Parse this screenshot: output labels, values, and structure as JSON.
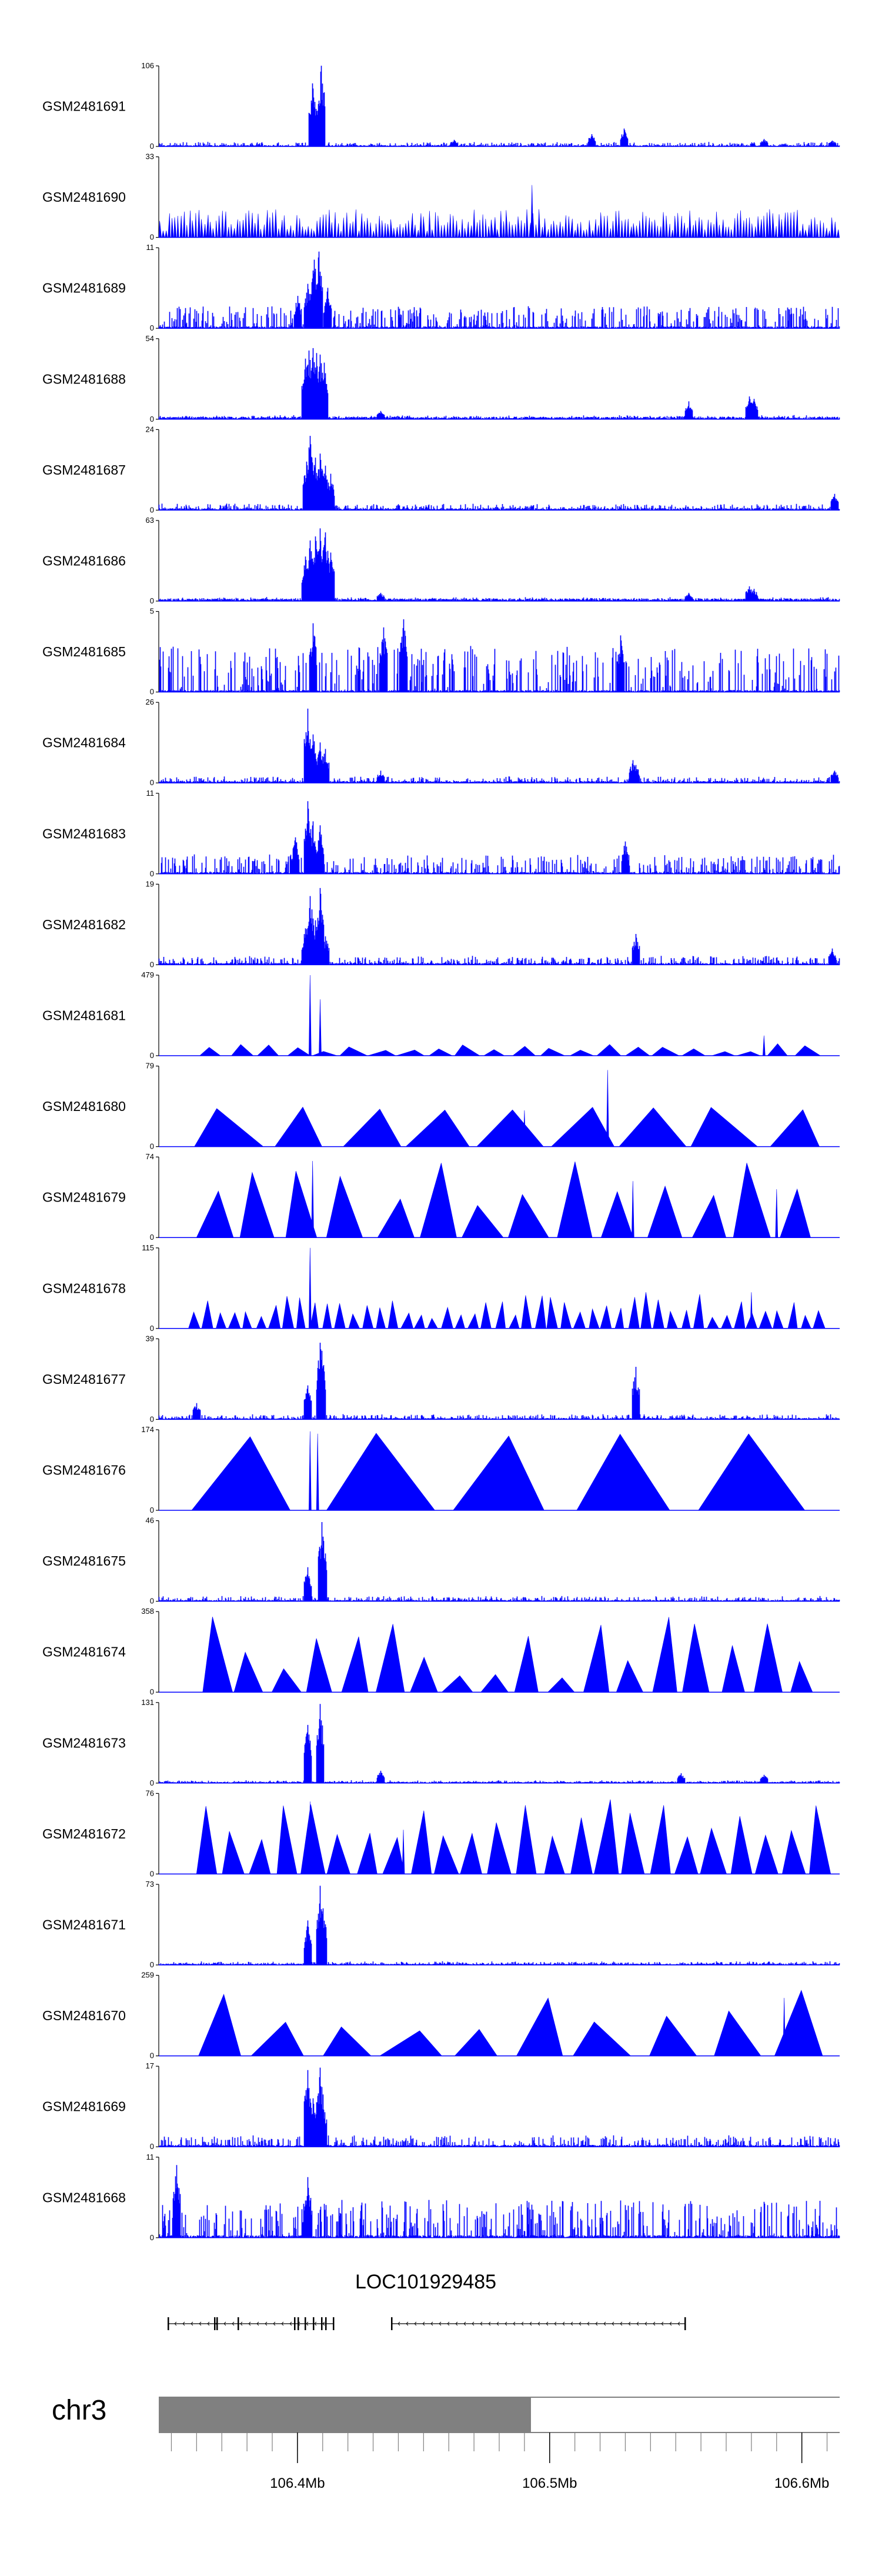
{
  "chart_data": {
    "type": "area",
    "region": {
      "chromosome": "chr3",
      "start_mb": 106.345,
      "end_mb": 106.615
    },
    "gene": {
      "name": "LOC101929485"
    },
    "axis": {
      "ticks": [
        {
          "pos": 106.4,
          "label": "106.4Mb"
        },
        {
          "pos": 106.5,
          "label": "106.5Mb"
        },
        {
          "pos": 106.6,
          "label": "106.6Mb"
        }
      ]
    },
    "colors": {
      "signal": "#0000ff",
      "ideogram_band": "#808080",
      "axis": "#000000"
    },
    "tracks": [
      {
        "name": "GSM2481691",
        "ymax": 106,
        "ymax_label": "106",
        "ymin_label": "0",
        "style": "dense",
        "base": 2,
        "noise": 0.04,
        "peaks": [
          [
            106.4058,
            0.78
          ],
          [
            106.4068,
            0.55
          ],
          [
            106.4093,
            1.0
          ],
          [
            106.5165,
            0.15
          ],
          [
            106.5295,
            0.22
          ],
          [
            106.462,
            0.08
          ],
          [
            106.585,
            0.09
          ],
          [
            106.612,
            0.07
          ]
        ]
      },
      {
        "name": "GSM2481690",
        "ymax": 33,
        "ymax_label": "33",
        "ymin_label": "0",
        "style": "spiky",
        "count": 230,
        "h": [
          0.08,
          0.35
        ],
        "peaks": [
          [
            106.493,
            0.65
          ]
        ]
      },
      {
        "name": "GSM2481689",
        "ymax": 11,
        "ymax_label": "11",
        "ymin_label": "0",
        "style": "dense",
        "base": 3,
        "noise": 0.26,
        "peaks": [
          [
            106.404,
            0.55
          ],
          [
            106.4065,
            0.85
          ],
          [
            106.4085,
            0.95
          ],
          [
            106.412,
            0.5
          ],
          [
            106.4,
            0.4
          ]
        ]
      },
      {
        "name": "GSM2481688",
        "ymax": 54,
        "ymax_label": "54",
        "ymin_label": "0",
        "style": "dense",
        "base": 4,
        "noise": 0.02,
        "peaks": [
          [
            106.403,
            0.75
          ],
          [
            106.4045,
            0.85
          ],
          [
            106.406,
            0.88
          ],
          [
            106.4075,
            0.82
          ],
          [
            106.409,
            0.8
          ],
          [
            106.4105,
            0.7
          ],
          [
            106.433,
            0.1
          ],
          [
            106.555,
            0.22
          ],
          [
            106.579,
            0.28
          ],
          [
            106.581,
            0.25
          ]
        ]
      },
      {
        "name": "GSM2481687",
        "ymax": 24,
        "ymax_label": "24",
        "ymin_label": "0",
        "style": "dense",
        "base": 3,
        "noise": 0.06,
        "peaks": [
          [
            106.4035,
            0.6
          ],
          [
            106.405,
            0.92
          ],
          [
            106.407,
            0.65
          ],
          [
            106.409,
            0.7
          ],
          [
            106.411,
            0.55
          ],
          [
            106.413,
            0.45
          ],
          [
            106.613,
            0.2
          ]
        ]
      },
      {
        "name": "GSM2481686",
        "ymax": 63,
        "ymax_label": "63",
        "ymin_label": "0",
        "style": "dense",
        "base": 4,
        "noise": 0.02,
        "peaks": [
          [
            106.403,
            0.55
          ],
          [
            106.405,
            0.75
          ],
          [
            106.407,
            0.8
          ],
          [
            106.409,
            0.9
          ],
          [
            106.411,
            0.85
          ],
          [
            106.413,
            0.6
          ],
          [
            106.433,
            0.1
          ],
          [
            106.555,
            0.1
          ],
          [
            106.579,
            0.18
          ],
          [
            106.581,
            0.15
          ]
        ]
      },
      {
        "name": "GSM2481685",
        "ymax": 5,
        "ymax_label": "5",
        "ymin_label": "0",
        "style": "dense",
        "base": 3,
        "noise": 0.55,
        "peaks": [
          [
            106.406,
            0.85
          ],
          [
            106.434,
            0.8
          ],
          [
            106.442,
            0.9
          ],
          [
            106.528,
            0.7
          ]
        ]
      },
      {
        "name": "GSM2481684",
        "ymax": 26,
        "ymax_label": "26",
        "ymin_label": "0",
        "style": "dense",
        "base": 3,
        "noise": 0.06,
        "peaks": [
          [
            106.404,
            0.92
          ],
          [
            106.406,
            0.6
          ],
          [
            106.409,
            0.5
          ],
          [
            106.411,
            0.42
          ],
          [
            106.433,
            0.15
          ],
          [
            106.533,
            0.28
          ],
          [
            106.534,
            0.22
          ],
          [
            106.613,
            0.15
          ]
        ]
      },
      {
        "name": "GSM2481683",
        "ymax": 11,
        "ymax_label": "11",
        "ymin_label": "0",
        "style": "dense",
        "base": 3,
        "noise": 0.22,
        "peaks": [
          [
            106.404,
            0.9
          ],
          [
            106.406,
            0.65
          ],
          [
            106.409,
            0.6
          ],
          [
            106.399,
            0.45
          ],
          [
            106.53,
            0.4
          ]
        ]
      },
      {
        "name": "GSM2481682",
        "ymax": 19,
        "ymax_label": "19",
        "ymin_label": "0",
        "style": "dense",
        "base": 3,
        "noise": 0.09,
        "peaks": [
          [
            106.403,
            0.45
          ],
          [
            106.405,
            0.85
          ],
          [
            106.407,
            0.55
          ],
          [
            106.409,
            0.95
          ],
          [
            106.411,
            0.35
          ],
          [
            106.534,
            0.38
          ],
          [
            106.612,
            0.2
          ]
        ]
      },
      {
        "name": "GSM2481681",
        "ymax": 479,
        "ymax_label": "479",
        "ymin_label": "0",
        "style": "tri",
        "count": 22,
        "h": [
          0.05,
          0.15
        ],
        "peaks": [
          [
            106.405,
            1.0
          ],
          [
            106.409,
            0.7
          ],
          [
            106.585,
            0.25
          ]
        ]
      },
      {
        "name": "GSM2481680",
        "ymax": 79,
        "ymax_label": "79",
        "ymin_label": "0",
        "style": "tri",
        "count": 9,
        "h": [
          0.45,
          0.5
        ],
        "peaks": [
          [
            106.523,
            0.95
          ],
          [
            106.49,
            0.45
          ]
        ]
      },
      {
        "name": "GSM2481679",
        "ymax": 74,
        "ymax_label": "74",
        "ymin_label": "0",
        "style": "tri",
        "count": 14,
        "h": [
          0.35,
          0.95
        ],
        "peaks": [
          [
            106.406,
            0.95
          ],
          [
            106.533,
            0.7
          ],
          [
            106.59,
            0.6
          ]
        ]
      },
      {
        "name": "GSM2481678",
        "ymax": 115,
        "ymax_label": "115",
        "ymin_label": "0",
        "style": "tri",
        "count": 48,
        "h": [
          0.1,
          0.45
        ],
        "peaks": [
          [
            106.405,
            1.0
          ],
          [
            106.58,
            0.45
          ]
        ]
      },
      {
        "name": "GSM2481677",
        "ymax": 39,
        "ymax_label": "39",
        "ymin_label": "0",
        "style": "dense",
        "base": 2,
        "noise": 0.05,
        "peaks": [
          [
            106.404,
            0.42
          ],
          [
            106.409,
            0.95
          ],
          [
            106.4095,
            0.85
          ],
          [
            106.36,
            0.2
          ],
          [
            106.534,
            0.65
          ]
        ]
      },
      {
        "name": "GSM2481676",
        "ymax": 174,
        "ymax_label": "174",
        "ymin_label": "0",
        "style": "tri",
        "count": 5,
        "h": [
          0.9,
          1.0
        ],
        "peaks": [
          [
            106.405,
            0.98
          ],
          [
            106.408,
            0.95
          ]
        ]
      },
      {
        "name": "GSM2481675",
        "ymax": 46,
        "ymax_label": "46",
        "ymin_label": "0",
        "style": "dense",
        "base": 2,
        "noise": 0.05,
        "peaks": [
          [
            106.404,
            0.42
          ],
          [
            106.4095,
            0.98
          ],
          [
            106.41,
            0.8
          ]
        ]
      },
      {
        "name": "GSM2481674",
        "ymax": 358,
        "ymax_label": "358",
        "ymin_label": "0",
        "style": "tri",
        "count": 18,
        "h": [
          0.15,
          0.95
        ],
        "peaks": [
          [
            106.406,
            0.35
          ]
        ]
      },
      {
        "name": "GSM2481673",
        "ymax": 131,
        "ymax_label": "131",
        "ymin_label": "0",
        "style": "dense",
        "base": 2,
        "noise": 0.02,
        "peaks": [
          [
            106.404,
            0.72
          ],
          [
            106.409,
            0.98
          ],
          [
            106.433,
            0.15
          ],
          [
            106.552,
            0.12
          ],
          [
            106.585,
            0.1
          ]
        ]
      },
      {
        "name": "GSM2481672",
        "ymax": 76,
        "ymax_label": "76",
        "ymin_label": "0",
        "style": "tri",
        "count": 24,
        "h": [
          0.35,
          0.95
        ],
        "peaks": [
          [
            106.405,
            0.9
          ],
          [
            106.442,
            0.55
          ]
        ]
      },
      {
        "name": "GSM2481671",
        "ymax": 73,
        "ymax_label": "73",
        "ymin_label": "0",
        "style": "dense",
        "base": 2,
        "noise": 0.03,
        "peaks": [
          [
            106.404,
            0.55
          ],
          [
            106.409,
            0.98
          ],
          [
            106.41,
            0.7
          ]
        ]
      },
      {
        "name": "GSM2481670",
        "ymax": 259,
        "ymax_label": "259",
        "ymin_label": "0",
        "style": "tri",
        "count": 10,
        "h": [
          0.3,
          1.0
        ],
        "peaks": [
          [
            106.593,
            0.72
          ]
        ]
      },
      {
        "name": "GSM2481669",
        "ymax": 17,
        "ymax_label": "17",
        "ymin_label": "0",
        "style": "dense",
        "base": 3,
        "noise": 0.12,
        "peaks": [
          [
            106.404,
            0.95
          ],
          [
            106.409,
            0.98
          ],
          [
            106.406,
            0.6
          ],
          [
            106.41,
            0.55
          ]
        ]
      },
      {
        "name": "GSM2481668",
        "ymax": 11,
        "ymax_label": "11",
        "ymin_label": "0",
        "style": "dense",
        "base": 4,
        "noise": 0.45,
        "peaks": [
          [
            106.352,
            0.9
          ],
          [
            106.404,
            0.75
          ]
        ]
      }
    ]
  }
}
